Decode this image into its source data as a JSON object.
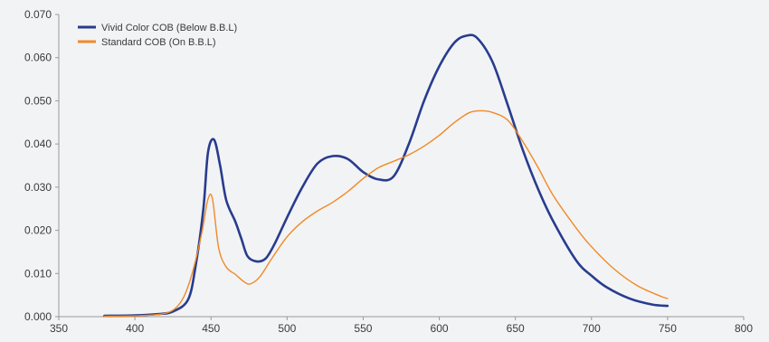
{
  "chart_data": {
    "type": "line",
    "title": "",
    "xlabel": "",
    "ylabel": "",
    "xlim": [
      350,
      800
    ],
    "ylim": [
      0,
      0.07
    ],
    "x_ticks": [
      "350",
      "400",
      "450",
      "500",
      "550",
      "600",
      "650",
      "700",
      "750",
      "800"
    ],
    "y_ticks": [
      "0.000",
      "0.010",
      "0.020",
      "0.030",
      "0.040",
      "0.050",
      "0.060",
      "0.070"
    ],
    "grid": false,
    "legend_position": "top-left",
    "series": [
      {
        "name": "Vivid Color COB (Below B.B.L)",
        "color": "#283c8e",
        "points": [
          [
            380,
            0.0002
          ],
          [
            400,
            0.0003
          ],
          [
            415,
            0.0006
          ],
          [
            425,
            0.0012
          ],
          [
            435,
            0.004
          ],
          [
            440,
            0.012
          ],
          [
            445,
            0.025
          ],
          [
            448,
            0.038
          ],
          [
            452,
            0.041
          ],
          [
            456,
            0.035
          ],
          [
            460,
            0.027
          ],
          [
            466,
            0.022
          ],
          [
            470,
            0.018
          ],
          [
            474,
            0.014
          ],
          [
            480,
            0.0128
          ],
          [
            486,
            0.0135
          ],
          [
            492,
            0.017
          ],
          [
            500,
            0.023
          ],
          [
            510,
            0.03
          ],
          [
            520,
            0.0355
          ],
          [
            530,
            0.0372
          ],
          [
            540,
            0.0365
          ],
          [
            550,
            0.0335
          ],
          [
            560,
            0.0318
          ],
          [
            570,
            0.0325
          ],
          [
            580,
            0.04
          ],
          [
            590,
            0.05
          ],
          [
            600,
            0.058
          ],
          [
            610,
            0.0635
          ],
          [
            618,
            0.0651
          ],
          [
            625,
            0.0645
          ],
          [
            635,
            0.059
          ],
          [
            645,
            0.049
          ],
          [
            655,
            0.0385
          ],
          [
            665,
            0.0295
          ],
          [
            675,
            0.022
          ],
          [
            690,
            0.013
          ],
          [
            700,
            0.0095
          ],
          [
            710,
            0.0068
          ],
          [
            725,
            0.0042
          ],
          [
            740,
            0.0028
          ],
          [
            750,
            0.0025
          ]
        ]
      },
      {
        "name": "Standard COB (On B.B.L)",
        "color": "#f08a24",
        "points": [
          [
            380,
            0.0001
          ],
          [
            400,
            0.0002
          ],
          [
            415,
            0.0005
          ],
          [
            425,
            0.0015
          ],
          [
            432,
            0.0045
          ],
          [
            438,
            0.0105
          ],
          [
            444,
            0.0195
          ],
          [
            448,
            0.0272
          ],
          [
            451,
            0.0272
          ],
          [
            455,
            0.016
          ],
          [
            460,
            0.0115
          ],
          [
            466,
            0.0098
          ],
          [
            472,
            0.008
          ],
          [
            476,
            0.0076
          ],
          [
            482,
            0.0092
          ],
          [
            490,
            0.0135
          ],
          [
            500,
            0.0185
          ],
          [
            510,
            0.022
          ],
          [
            520,
            0.0245
          ],
          [
            530,
            0.0265
          ],
          [
            540,
            0.029
          ],
          [
            550,
            0.032
          ],
          [
            560,
            0.0345
          ],
          [
            570,
            0.036
          ],
          [
            580,
            0.0375
          ],
          [
            590,
            0.0395
          ],
          [
            600,
            0.042
          ],
          [
            610,
            0.045
          ],
          [
            620,
            0.0473
          ],
          [
            628,
            0.0477
          ],
          [
            635,
            0.0473
          ],
          [
            645,
            0.0455
          ],
          [
            655,
            0.0405
          ],
          [
            665,
            0.0345
          ],
          [
            675,
            0.028
          ],
          [
            690,
            0.0205
          ],
          [
            700,
            0.0162
          ],
          [
            715,
            0.011
          ],
          [
            730,
            0.0072
          ],
          [
            745,
            0.0048
          ],
          [
            750,
            0.0042
          ]
        ]
      }
    ]
  }
}
